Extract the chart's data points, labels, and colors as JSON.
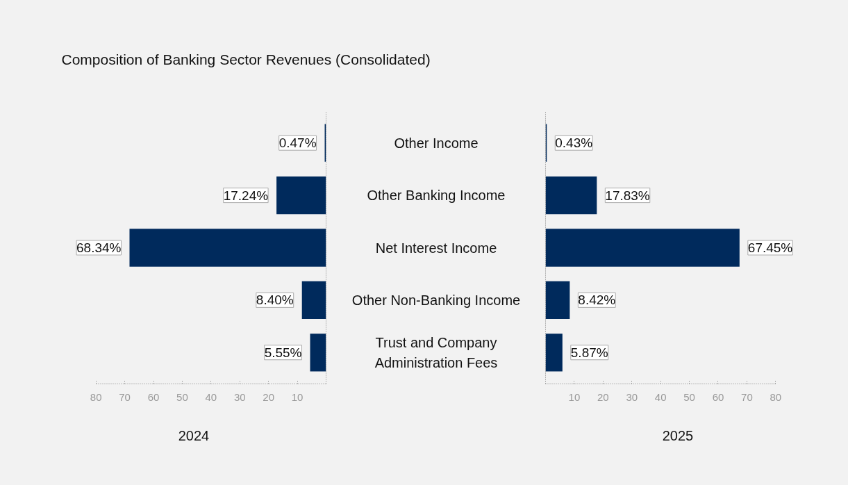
{
  "chart_data": [
    {
      "type": "bar",
      "orientation": "horizontal",
      "title": "Composition of Banking Sector Revenues (Consolidated)",
      "xlabel": "2024",
      "categories": [
        "Other Income",
        "Other Banking Income",
        "Net Interest Income",
        "Other Non-Banking Income",
        "Trust and Company Administration Fees"
      ],
      "values": [
        0.47,
        17.24,
        68.34,
        8.4,
        5.55
      ],
      "value_labels": [
        "0.47%",
        "17.24%",
        "68.34%",
        "8.40%",
        "5.55%"
      ],
      "color": "#002a5c",
      "xlim": [
        80,
        0
      ],
      "xticks": [
        80,
        70,
        60,
        50,
        40,
        30,
        20,
        10
      ],
      "grid": false
    },
    {
      "type": "bar",
      "orientation": "horizontal",
      "xlabel": "2025",
      "tick_labels": "x",
      "categories": [
        "Other Income",
        "Other Banking Income",
        "Net Interest Income",
        "Other Non-Banking Income",
        "Trust and Company Administration Fees"
      ],
      "values": [
        0.43,
        17.83,
        67.45,
        8.42,
        5.87
      ],
      "value_labels": [
        "0.43%",
        "17.83%",
        "67.45%",
        "8.42%",
        "5.87%"
      ],
      "color": "#002a5c",
      "xlim": [
        0,
        80
      ],
      "xticks": [
        10,
        20,
        30,
        40,
        50,
        60,
        70,
        80
      ],
      "grid": false
    }
  ]
}
